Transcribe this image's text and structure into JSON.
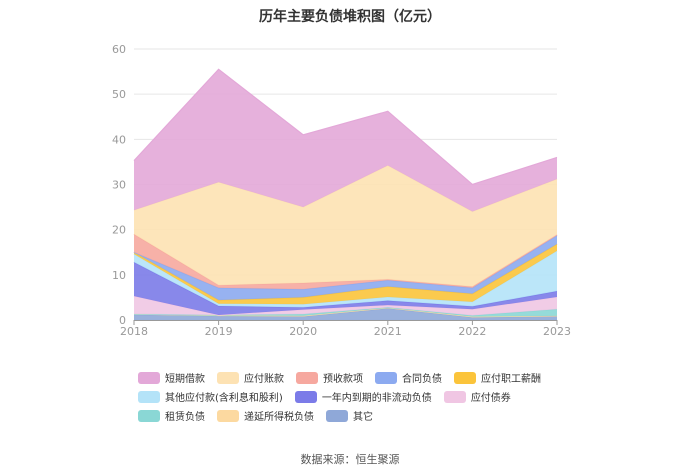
{
  "title": "历年主要负债堆积图（亿元）",
  "source": "数据来源：恒生聚源",
  "chart_data": {
    "type": "area",
    "stacked": true,
    "x": [
      "2018",
      "2019",
      "2020",
      "2021",
      "2022",
      "2023"
    ],
    "ylim": [
      0,
      60
    ],
    "yticks": [
      "0",
      "10",
      "20",
      "30",
      "40",
      "50",
      "60"
    ],
    "grid": true,
    "legend_position": "bottom",
    "series": [
      {
        "name": "其它",
        "color": "#8fa8d8",
        "values": [
          1.2,
          0.9,
          0.8,
          2.6,
          0.6,
          0.8
        ]
      },
      {
        "name": "递延所得税负债",
        "color": "#fcd9a0",
        "values": [
          0.1,
          0.1,
          0.1,
          0.1,
          0.1,
          0.1
        ]
      },
      {
        "name": "租赁负债",
        "color": "#8ad7d5",
        "values": [
          0.0,
          0.1,
          0.4,
          0.1,
          0.3,
          1.5
        ]
      },
      {
        "name": "应付债券",
        "color": "#f0c6e3",
        "values": [
          4.0,
          0.0,
          1.0,
          0.5,
          1.4,
          2.7
        ]
      },
      {
        "name": "一年内到期的非流动负债",
        "color": "#7b7be8",
        "values": [
          7.5,
          2.0,
          0.5,
          1.0,
          0.6,
          1.3
        ]
      },
      {
        "name": "其他应付款(含利息和股利)",
        "color": "#b4e3f8",
        "values": [
          1.8,
          0.5,
          0.7,
          0.8,
          1.0,
          8.9
        ]
      },
      {
        "name": "应付职工薪酬",
        "color": "#fbc43b",
        "values": [
          0.4,
          0.8,
          1.5,
          2.3,
          1.8,
          1.5
        ]
      },
      {
        "name": "合同负债",
        "color": "#8caaf0",
        "values": [
          0.0,
          2.7,
          1.8,
          1.4,
          1.3,
          1.9
        ]
      },
      {
        "name": "预收款项",
        "color": "#f6a89f",
        "values": [
          4.0,
          0.6,
          1.4,
          0.2,
          0.3,
          0.2
        ]
      },
      {
        "name": "应付账款",
        "color": "#fde2b3",
        "values": [
          5.3,
          22.8,
          16.8,
          25.2,
          16.6,
          12.3
        ]
      },
      {
        "name": "短期借款",
        "color": "#e3a8d8",
        "values": [
          11.0,
          25.0,
          16.0,
          12.0,
          6.0,
          4.8
        ]
      }
    ]
  }
}
